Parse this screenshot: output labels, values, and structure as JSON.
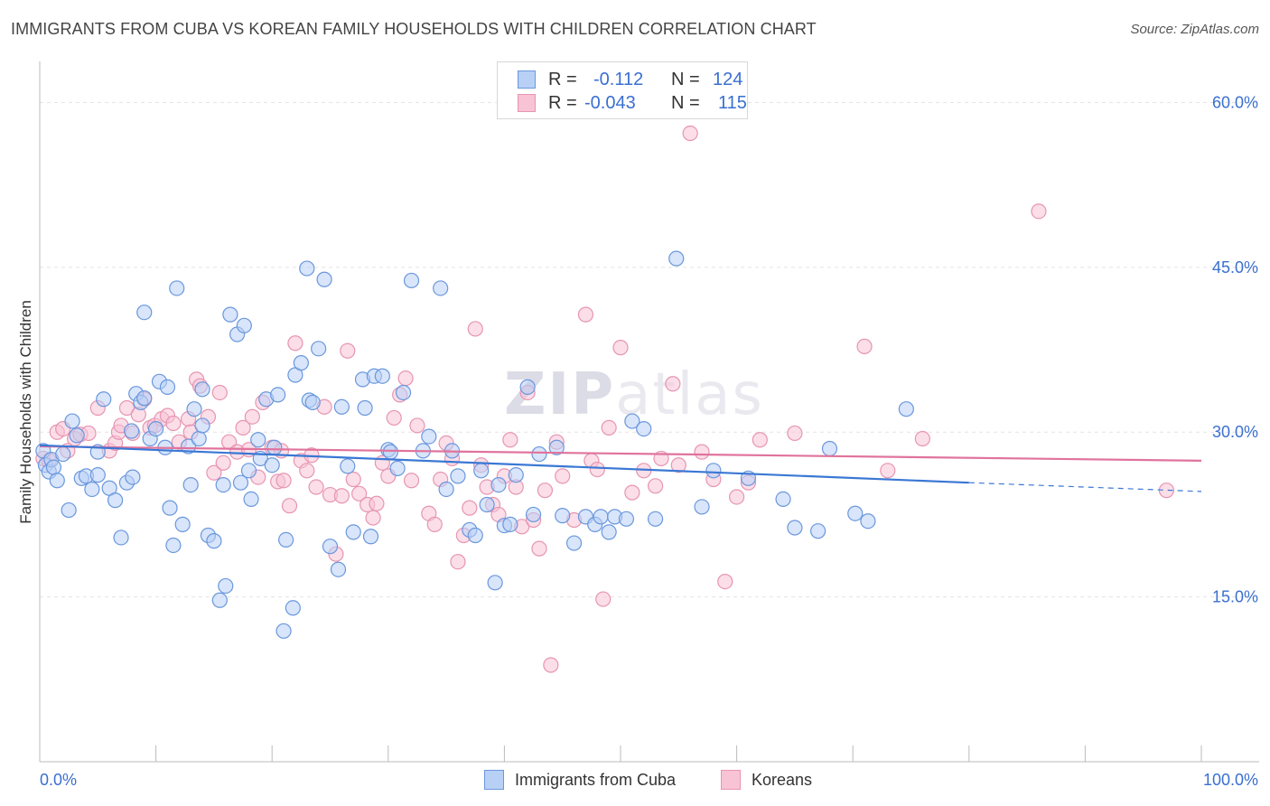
{
  "header": {
    "title": "IMMIGRANTS FROM CUBA VS KOREAN FAMILY HOUSEHOLDS WITH CHILDREN CORRELATION CHART",
    "source": "Source: ZipAtlas.com"
  },
  "watermark": {
    "zip": "ZIP",
    "atlas": "atlas"
  },
  "legend_box": {
    "rows": [
      {
        "r_label": "R =",
        "r_value": "-0.112",
        "n_label": "N =",
        "n_value": "124"
      },
      {
        "r_label": "R =",
        "r_value": "-0.043",
        "n_label": "N =",
        "n_value": "115"
      }
    ]
  },
  "colors": {
    "cuba_fill": "#b8d0f5",
    "cuba_stroke": "#6a97dd",
    "cuba_line": "#3a78d4",
    "korea_fill": "#f8c3d5",
    "korea_stroke": "#e795b2",
    "korea_line": "#e0739c",
    "tick_label": "#3a6fd0",
    "grid": "#e4e4e4"
  },
  "chart_data": {
    "type": "scatter",
    "title": "IMMIGRANTS FROM CUBA VS KOREAN FAMILY HOUSEHOLDS WITH CHILDREN CORRELATION CHART",
    "xlabel": "",
    "ylabel": "Family Households with Children",
    "xlim": [
      0,
      100
    ],
    "ylim": [
      0,
      63
    ],
    "x_tick_labels": [
      "0.0%",
      "100.0%"
    ],
    "y_ticks": [
      15,
      30,
      45,
      60
    ],
    "y_tick_labels": [
      "15.0%",
      "30.0%",
      "45.0%",
      "60.0%"
    ],
    "grid": true,
    "legend_position": "top-center",
    "series": [
      {
        "name": "Immigrants from Cuba",
        "r": -0.112,
        "n": 124,
        "trend": {
          "x0": 0,
          "y0": 28.8,
          "x1": 80,
          "y1": 25.4,
          "dashed_to_x": 100,
          "dashed_to_y": 24.6
        },
        "points": [
          [
            0.3,
            28.3
          ],
          [
            0.5,
            27.0
          ],
          [
            0.8,
            26.4
          ],
          [
            1.0,
            27.5
          ],
          [
            1.2,
            26.8
          ],
          [
            1.5,
            25.6
          ],
          [
            2.0,
            28.0
          ],
          [
            2.5,
            22.9
          ],
          [
            2.8,
            31.0
          ],
          [
            3.2,
            29.7
          ],
          [
            3.6,
            25.8
          ],
          [
            4.0,
            26.0
          ],
          [
            4.5,
            24.8
          ],
          [
            5.0,
            28.2
          ],
          [
            5.0,
            26.1
          ],
          [
            5.5,
            33.0
          ],
          [
            6.0,
            24.9
          ],
          [
            6.5,
            23.8
          ],
          [
            7.0,
            20.4
          ],
          [
            7.5,
            25.4
          ],
          [
            7.9,
            30.1
          ],
          [
            8.0,
            25.9
          ],
          [
            8.3,
            33.5
          ],
          [
            8.7,
            32.7
          ],
          [
            9.0,
            33.1
          ],
          [
            9.0,
            40.9
          ],
          [
            9.5,
            29.4
          ],
          [
            10.0,
            30.3
          ],
          [
            10.3,
            34.6
          ],
          [
            10.8,
            28.6
          ],
          [
            11.0,
            34.1
          ],
          [
            11.2,
            23.1
          ],
          [
            11.5,
            19.7
          ],
          [
            11.8,
            43.1
          ],
          [
            12.3,
            21.6
          ],
          [
            12.8,
            28.7
          ],
          [
            13.0,
            25.2
          ],
          [
            13.3,
            32.1
          ],
          [
            13.7,
            29.4
          ],
          [
            14.0,
            33.9
          ],
          [
            14.0,
            30.6
          ],
          [
            14.5,
            20.6
          ],
          [
            15.0,
            20.1
          ],
          [
            15.5,
            14.7
          ],
          [
            15.8,
            25.2
          ],
          [
            16.0,
            16.0
          ],
          [
            16.4,
            40.7
          ],
          [
            17.0,
            38.9
          ],
          [
            17.3,
            25.4
          ],
          [
            17.6,
            39.7
          ],
          [
            18.0,
            26.5
          ],
          [
            18.2,
            23.9
          ],
          [
            18.8,
            29.3
          ],
          [
            19.0,
            27.6
          ],
          [
            19.5,
            33.0
          ],
          [
            20.0,
            27.0
          ],
          [
            20.2,
            28.6
          ],
          [
            20.5,
            33.4
          ],
          [
            21.0,
            11.9
          ],
          [
            21.2,
            20.2
          ],
          [
            21.8,
            14.0
          ],
          [
            22.0,
            35.2
          ],
          [
            22.5,
            36.3
          ],
          [
            23.0,
            44.9
          ],
          [
            23.2,
            32.9
          ],
          [
            23.5,
            32.7
          ],
          [
            24.0,
            37.6
          ],
          [
            24.5,
            43.9
          ],
          [
            25.0,
            19.6
          ],
          [
            25.7,
            17.5
          ],
          [
            26.0,
            32.3
          ],
          [
            26.5,
            26.9
          ],
          [
            27.0,
            20.9
          ],
          [
            27.8,
            34.8
          ],
          [
            28.0,
            32.2
          ],
          [
            28.5,
            20.5
          ],
          [
            28.8,
            35.1
          ],
          [
            29.5,
            35.1
          ],
          [
            30.0,
            28.4
          ],
          [
            30.2,
            28.2
          ],
          [
            30.8,
            26.7
          ],
          [
            31.3,
            33.6
          ],
          [
            32.0,
            43.8
          ],
          [
            33.0,
            28.3
          ],
          [
            33.5,
            29.6
          ],
          [
            34.5,
            43.1
          ],
          [
            35.0,
            24.8
          ],
          [
            35.5,
            28.3
          ],
          [
            36.0,
            26.0
          ],
          [
            37.0,
            21.1
          ],
          [
            37.5,
            20.6
          ],
          [
            38.0,
            26.5
          ],
          [
            38.5,
            23.4
          ],
          [
            39.2,
            16.3
          ],
          [
            39.5,
            25.2
          ],
          [
            40.0,
            21.5
          ],
          [
            40.5,
            21.6
          ],
          [
            41.0,
            26.1
          ],
          [
            42.0,
            34.1
          ],
          [
            42.5,
            22.5
          ],
          [
            43.0,
            28.0
          ],
          [
            44.5,
            28.6
          ],
          [
            45.0,
            22.4
          ],
          [
            46.0,
            19.9
          ],
          [
            47.0,
            22.3
          ],
          [
            47.8,
            21.6
          ],
          [
            48.3,
            22.3
          ],
          [
            49.0,
            20.9
          ],
          [
            49.5,
            22.3
          ],
          [
            50.5,
            22.1
          ],
          [
            51.0,
            31.0
          ],
          [
            52.0,
            30.3
          ],
          [
            53.0,
            22.1
          ],
          [
            54.8,
            45.8
          ],
          [
            57.0,
            23.2
          ],
          [
            58.0,
            26.5
          ],
          [
            61.0,
            25.8
          ],
          [
            64.0,
            23.9
          ],
          [
            65.0,
            21.3
          ],
          [
            67.0,
            21.0
          ],
          [
            68.0,
            28.5
          ],
          [
            70.2,
            22.6
          ],
          [
            71.3,
            21.9
          ],
          [
            74.6,
            32.1
          ]
        ]
      },
      {
        "name": "Koreans",
        "r": -0.043,
        "n": 115,
        "trend": {
          "x0": 0,
          "y0": 28.7,
          "x1": 100,
          "y1": 27.4
        },
        "points": [
          [
            0.3,
            27.6
          ],
          [
            0.8,
            27.4
          ],
          [
            1.5,
            30.0
          ],
          [
            2.0,
            30.3
          ],
          [
            2.4,
            28.3
          ],
          [
            3.0,
            29.4
          ],
          [
            3.5,
            29.8
          ],
          [
            4.2,
            29.9
          ],
          [
            5.0,
            32.2
          ],
          [
            6.0,
            28.3
          ],
          [
            6.5,
            29.0
          ],
          [
            6.8,
            30.0
          ],
          [
            7.0,
            30.6
          ],
          [
            7.5,
            32.2
          ],
          [
            8.0,
            29.9
          ],
          [
            8.5,
            31.6
          ],
          [
            9.0,
            33.0
          ],
          [
            9.5,
            30.4
          ],
          [
            9.9,
            30.6
          ],
          [
            10.5,
            31.2
          ],
          [
            11.0,
            31.5
          ],
          [
            11.5,
            30.8
          ],
          [
            12.0,
            29.1
          ],
          [
            12.8,
            31.2
          ],
          [
            13.0,
            30.0
          ],
          [
            13.5,
            34.8
          ],
          [
            13.8,
            34.2
          ],
          [
            14.5,
            31.4
          ],
          [
            15.0,
            26.3
          ],
          [
            15.5,
            33.6
          ],
          [
            15.8,
            27.2
          ],
          [
            16.3,
            29.1
          ],
          [
            17.0,
            28.2
          ],
          [
            17.5,
            30.4
          ],
          [
            18.0,
            28.4
          ],
          [
            18.3,
            31.4
          ],
          [
            18.8,
            25.9
          ],
          [
            19.2,
            32.7
          ],
          [
            20.0,
            28.6
          ],
          [
            20.5,
            25.5
          ],
          [
            20.8,
            28.3
          ],
          [
            21.0,
            25.6
          ],
          [
            21.5,
            23.3
          ],
          [
            22.0,
            38.1
          ],
          [
            22.5,
            27.4
          ],
          [
            23.0,
            26.5
          ],
          [
            23.4,
            27.9
          ],
          [
            23.8,
            25.0
          ],
          [
            24.5,
            32.3
          ],
          [
            25.0,
            24.3
          ],
          [
            25.5,
            18.9
          ],
          [
            26.0,
            24.2
          ],
          [
            26.5,
            37.4
          ],
          [
            27.0,
            25.7
          ],
          [
            27.5,
            24.4
          ],
          [
            28.2,
            23.4
          ],
          [
            28.7,
            22.2
          ],
          [
            29.0,
            23.5
          ],
          [
            29.5,
            27.2
          ],
          [
            30.0,
            26.0
          ],
          [
            30.5,
            31.3
          ],
          [
            31.0,
            33.4
          ],
          [
            31.5,
            34.9
          ],
          [
            32.0,
            25.6
          ],
          [
            32.5,
            30.6
          ],
          [
            33.5,
            22.6
          ],
          [
            34.0,
            21.6
          ],
          [
            34.5,
            25.7
          ],
          [
            35.0,
            29.0
          ],
          [
            35.5,
            27.6
          ],
          [
            36.0,
            18.2
          ],
          [
            36.5,
            20.6
          ],
          [
            37.0,
            23.1
          ],
          [
            37.5,
            39.4
          ],
          [
            38.0,
            27.0
          ],
          [
            38.5,
            25.0
          ],
          [
            39.0,
            23.4
          ],
          [
            39.5,
            22.5
          ],
          [
            40.0,
            26.0
          ],
          [
            40.5,
            29.3
          ],
          [
            41.0,
            25.0
          ],
          [
            41.5,
            21.4
          ],
          [
            42.0,
            33.6
          ],
          [
            42.5,
            22.0
          ],
          [
            43.0,
            19.4
          ],
          [
            43.5,
            24.7
          ],
          [
            44.0,
            8.8
          ],
          [
            44.5,
            29.1
          ],
          [
            45.0,
            26.0
          ],
          [
            46.0,
            22.0
          ],
          [
            47.0,
            40.7
          ],
          [
            47.5,
            27.4
          ],
          [
            48.0,
            26.6
          ],
          [
            48.5,
            14.8
          ],
          [
            49.0,
            30.4
          ],
          [
            50.0,
            37.7
          ],
          [
            51.0,
            24.5
          ],
          [
            52.0,
            26.5
          ],
          [
            53.0,
            25.1
          ],
          [
            53.5,
            27.6
          ],
          [
            54.5,
            34.4
          ],
          [
            55.0,
            27.0
          ],
          [
            56.0,
            57.2
          ],
          [
            57.0,
            28.2
          ],
          [
            58.0,
            25.7
          ],
          [
            59.0,
            16.4
          ],
          [
            60.0,
            24.1
          ],
          [
            61.0,
            25.4
          ],
          [
            62.0,
            29.3
          ],
          [
            65.0,
            29.9
          ],
          [
            71.0,
            37.8
          ],
          [
            73.0,
            26.5
          ],
          [
            76.0,
            29.4
          ],
          [
            86.0,
            50.1
          ],
          [
            97.0,
            24.7
          ]
        ]
      }
    ]
  }
}
